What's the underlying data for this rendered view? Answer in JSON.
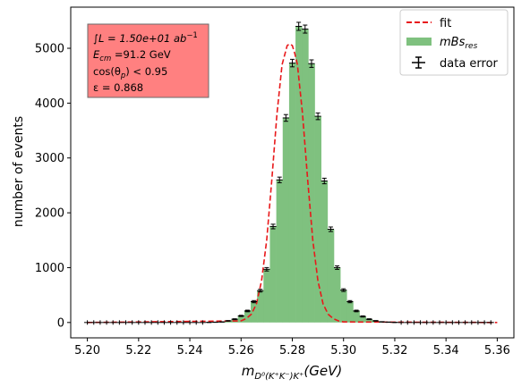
{
  "chart_data": {
    "type": "bar",
    "title": "",
    "xlabel": "m_{D^0(K^+K^-)K^+}(GeV)",
    "xlabel_parts": {
      "main": "m",
      "sub": "D⁰(K⁺K⁻)K⁺",
      "unit": "(GeV)"
    },
    "ylabel": "number of events",
    "xlim": [
      5.1935,
      5.3665
    ],
    "ylim": [
      -280,
      5750
    ],
    "grid": false,
    "legend_placement": "top-right",
    "xticks": [
      5.2,
      5.22,
      5.24,
      5.26,
      5.28,
      5.3,
      5.32,
      5.34,
      5.36
    ],
    "xtick_labels": [
      "5.20",
      "5.22",
      "5.24",
      "5.26",
      "5.28",
      "5.30",
      "5.32",
      "5.34",
      "5.36"
    ],
    "yticks": [
      0,
      1000,
      2000,
      3000,
      4000,
      5000
    ],
    "ytick_labels": [
      "0",
      "1000",
      "2000",
      "3000",
      "4000",
      "5000"
    ],
    "bin_width": 0.0025,
    "bin_centers": [
      5.2,
      5.2025,
      5.205,
      5.2075,
      5.21,
      5.2125,
      5.215,
      5.2175,
      5.22,
      5.2225,
      5.225,
      5.2275,
      5.23,
      5.2325,
      5.235,
      5.2375,
      5.24,
      5.2425,
      5.245,
      5.2475,
      5.25,
      5.2525,
      5.255,
      5.2575,
      5.26,
      5.2625,
      5.265,
      5.2675,
      5.27,
      5.2725,
      5.275,
      5.2775,
      5.28,
      5.2825,
      5.285,
      5.2875,
      5.29,
      5.2925,
      5.295,
      5.2975,
      5.3,
      5.3025,
      5.305,
      5.3075,
      5.31,
      5.3125,
      5.315,
      5.3175,
      5.32,
      5.3225,
      5.325,
      5.3275,
      5.33,
      5.3325,
      5.335,
      5.3375,
      5.34,
      5.3425,
      5.345,
      5.3475,
      5.35,
      5.3525,
      5.355,
      5.3575
    ],
    "series": [
      {
        "name": "mBs_res",
        "legend_label": "mBs",
        "legend_sub": "res",
        "kind": "histogram",
        "color": "#7fc17f",
        "values": [
          0,
          0,
          0,
          0,
          0,
          0,
          0,
          0,
          0,
          0,
          0,
          0,
          0,
          0,
          0,
          0,
          0,
          0,
          0,
          2,
          5,
          10,
          30,
          60,
          120,
          210,
          380,
          580,
          970,
          1750,
          2600,
          3730,
          4730,
          5400,
          5350,
          4720,
          3760,
          2580,
          1700,
          1000,
          590,
          380,
          210,
          110,
          60,
          30,
          12,
          6,
          2,
          0,
          0,
          0,
          0,
          0,
          0,
          0,
          0,
          0,
          0,
          0,
          0,
          0,
          0,
          0
        ]
      },
      {
        "name": "fit",
        "kind": "line",
        "color": "#e8191b",
        "style": "dashed",
        "x": [
          5.2,
          5.26,
          5.262,
          5.264,
          5.266,
          5.268,
          5.27,
          5.272,
          5.274,
          5.276,
          5.278,
          5.279,
          5.28,
          5.281,
          5.282,
          5.284,
          5.286,
          5.288,
          5.29,
          5.292,
          5.294,
          5.296,
          5.298,
          5.3,
          5.36
        ],
        "y": [
          0,
          30,
          70,
          150,
          340,
          760,
          1500,
          2600,
          3800,
          4700,
          5050,
          5080,
          5050,
          4900,
          4700,
          3800,
          2600,
          1500,
          760,
          340,
          150,
          70,
          30,
          10,
          0
        ]
      },
      {
        "name": "data error",
        "kind": "errorbar",
        "color": "#000000",
        "note": "y values equal the histogram values; y errors are sqrt(N)"
      }
    ],
    "annotation_box": {
      "background": "#ff8080",
      "lines": [
        {
          "pre": "∫L = 1.50e+01 ",
          "unit": "ab",
          "sup": "−1"
        },
        {
          "main": "E",
          "sub": "cm",
          "post": " =91.2 GeV"
        },
        {
          "main": "cos(θ",
          "sub": "p",
          "post": ") < 0.95"
        },
        {
          "main": "ε = 0.868"
        }
      ]
    }
  }
}
